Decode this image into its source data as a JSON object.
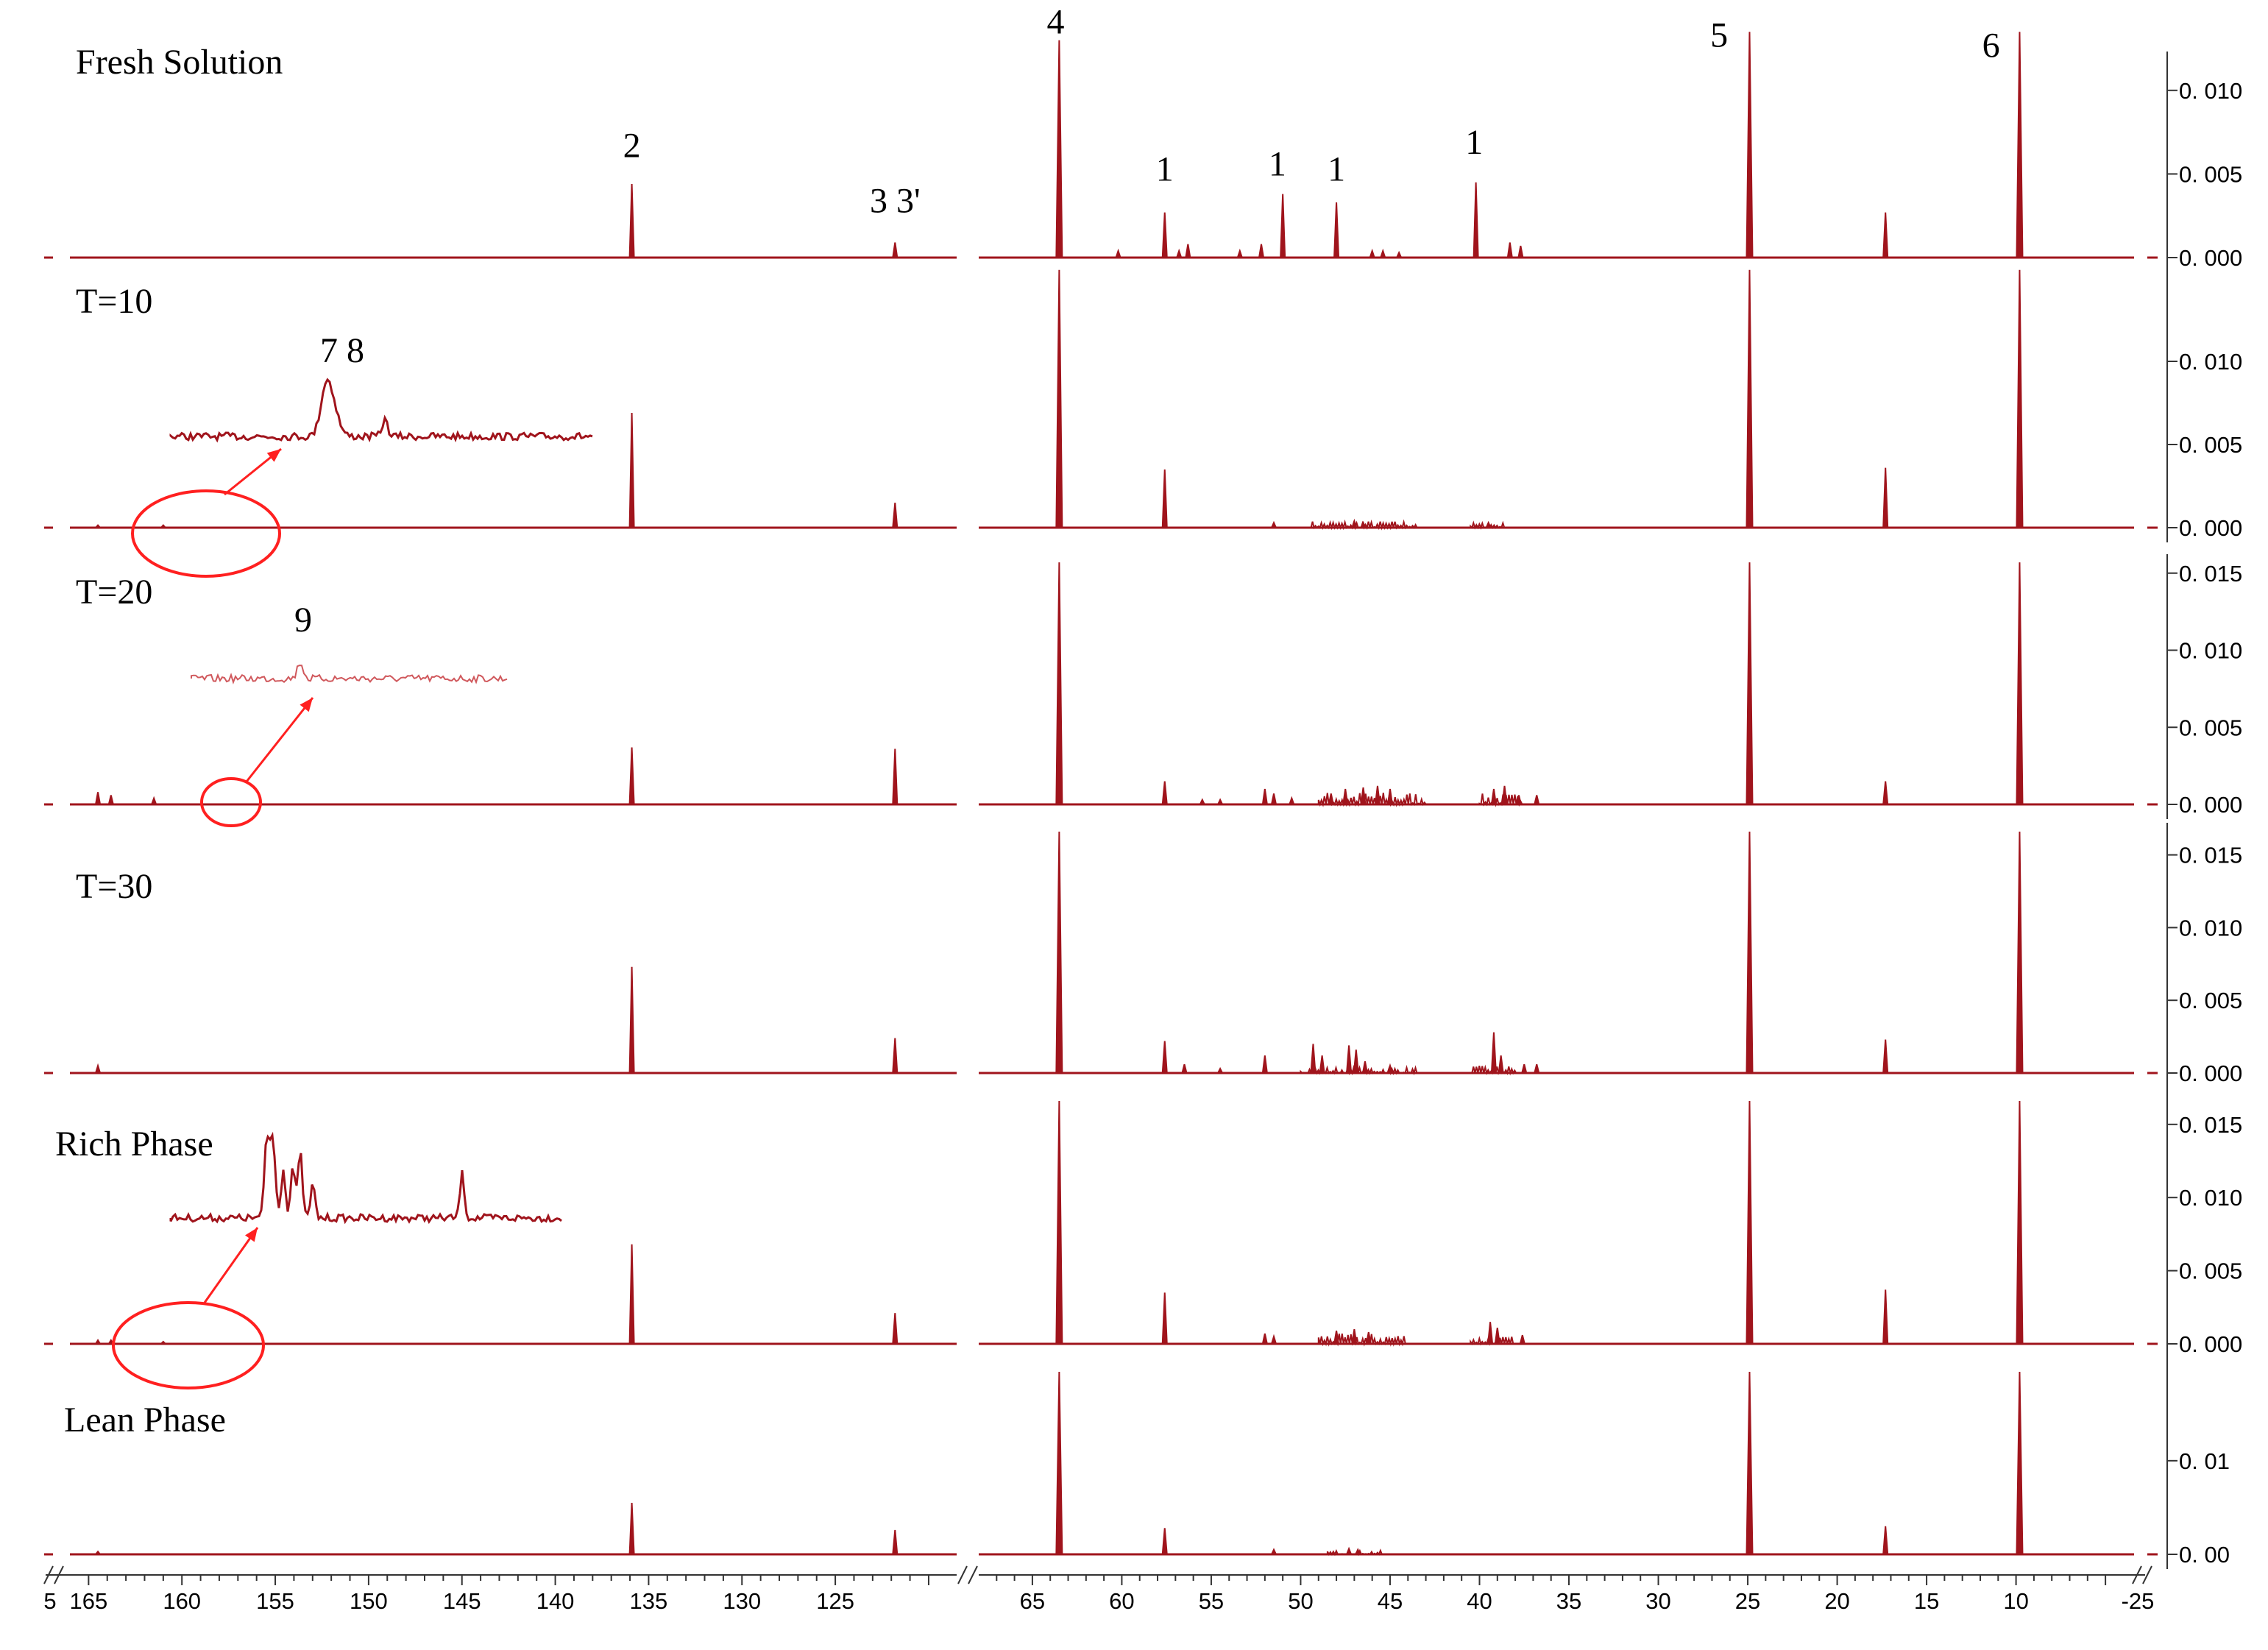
{
  "chart_data": {
    "type": "line",
    "x_axis": {
      "ticks_left": [
        "5",
        "165",
        "160",
        "155",
        "150",
        "145",
        "140",
        "135",
        "130",
        "125"
      ],
      "ticks_right": [
        "65",
        "60",
        "55",
        "50",
        "45",
        "40",
        "35",
        "30",
        "25",
        "20",
        "15",
        "10",
        "-25"
      ]
    },
    "panels": [
      {
        "label": "Fresh Solution",
        "y_ticks": [
          "0. 010",
          "0. 005",
          "0. 000"
        ],
        "y_tick_values": [
          0.01,
          0.005,
          0.0
        ],
        "ylim": [
          -0.0002,
          0.0125
        ],
        "peaks": [
          [
            135.9,
            0.0044
          ],
          [
            121.8,
            0.0009
          ],
          [
            63.5,
            0.013
          ],
          [
            60.2,
            0.0004
          ],
          [
            57.6,
            0.0027
          ],
          [
            56.8,
            0.0004
          ],
          [
            56.3,
            0.0008
          ],
          [
            53.4,
            0.0004
          ],
          [
            52.2,
            0.0008
          ],
          [
            51.0,
            0.0038
          ],
          [
            48.0,
            0.0033
          ],
          [
            46.0,
            0.0004
          ],
          [
            45.4,
            0.0004
          ],
          [
            44.5,
            0.0003
          ],
          [
            40.2,
            0.0045
          ],
          [
            38.3,
            0.0009
          ],
          [
            37.7,
            0.0007
          ],
          [
            24.9,
            0.0135
          ],
          [
            17.3,
            0.0027
          ],
          [
            9.8,
            0.0135
          ]
        ],
        "peak_labels": [
          {
            "text": "2",
            "x": 135.9,
            "y": 0.006
          },
          {
            "text": "3 3'",
            "x": 121.8,
            "y": 0.0027
          },
          {
            "text": "4",
            "x": 63.7,
            "y": 0.0134
          },
          {
            "text": "1",
            "x": 57.6,
            "y": 0.0046
          },
          {
            "text": "1",
            "x": 51.3,
            "y": 0.0049
          },
          {
            "text": "1",
            "x": 48.0,
            "y": 0.0046
          },
          {
            "text": "1",
            "x": 40.3,
            "y": 0.0062
          },
          {
            "text": "5",
            "x": 26.6,
            "y": 0.0126
          },
          {
            "text": "6",
            "x": 11.4,
            "y": 0.012
          }
        ]
      },
      {
        "label": "T=10",
        "y_ticks": [
          "0. 010",
          "0. 005",
          "0. 000"
        ],
        "y_tick_values": [
          0.01,
          0.005,
          0.0
        ],
        "ylim": [
          -0.0002,
          0.015
        ],
        "peaks": [
          [
            164.5,
            0.00015
          ],
          [
            161.0,
            0.00015
          ],
          [
            135.9,
            0.0069
          ],
          [
            121.8,
            0.0015
          ],
          [
            63.5,
            0.0155
          ],
          [
            57.6,
            0.0035
          ],
          [
            51.5,
            0.0003
          ],
          [
            47.0,
            0.0004
          ],
          [
            46.5,
            0.0003
          ],
          [
            39.5,
            0.0003
          ],
          [
            24.9,
            0.0155
          ],
          [
            17.3,
            0.0036
          ],
          [
            9.8,
            0.0155
          ]
        ],
        "noise_ranges": [
          [
            49.5,
            43.5,
            0.0004
          ],
          [
            40.5,
            38.5,
            0.0003
          ]
        ],
        "inset_label": "7 8"
      },
      {
        "label": "T=20",
        "y_ticks": [
          "0. 015",
          "0. 010",
          "0. 005",
          "0. 000"
        ],
        "y_tick_values": [
          0.015,
          0.01,
          0.005,
          0.0
        ],
        "ylim": [
          -0.0002,
          0.0158
        ],
        "peaks": [
          [
            164.5,
            0.0008
          ],
          [
            163.8,
            0.0006
          ],
          [
            161.5,
            0.0004
          ],
          [
            135.9,
            0.0037
          ],
          [
            121.8,
            0.0036
          ],
          [
            63.5,
            0.0157
          ],
          [
            57.6,
            0.0015
          ],
          [
            55.5,
            0.0003
          ],
          [
            54.5,
            0.0003
          ],
          [
            52.0,
            0.001
          ],
          [
            51.5,
            0.0007
          ],
          [
            50.5,
            0.0004
          ],
          [
            48.3,
            0.0007
          ],
          [
            47.5,
            0.001
          ],
          [
            46.5,
            0.0011
          ],
          [
            45.7,
            0.0012
          ],
          [
            45.0,
            0.001
          ],
          [
            39.2,
            0.001
          ],
          [
            38.6,
            0.0012
          ],
          [
            37.8,
            0.0006
          ],
          [
            36.8,
            0.0006
          ],
          [
            24.9,
            0.0157
          ],
          [
            17.3,
            0.0015
          ],
          [
            9.8,
            0.0157
          ]
        ],
        "noise_ranges": [
          [
            49.0,
            43.0,
            0.0008
          ],
          [
            40.0,
            37.5,
            0.0007
          ]
        ],
        "inset_label": "9"
      },
      {
        "label": "T=30",
        "y_ticks": [
          "0. 015",
          "0. 010",
          "0. 005",
          "0. 000"
        ],
        "y_tick_values": [
          0.015,
          0.01,
          0.005,
          0.0
        ],
        "ylim": [
          -0.0002,
          0.0166
        ],
        "peaks": [
          [
            164.5,
            0.0005
          ],
          [
            135.9,
            0.0073
          ],
          [
            121.8,
            0.0024
          ],
          [
            63.5,
            0.0166
          ],
          [
            57.6,
            0.0022
          ],
          [
            56.5,
            0.0006
          ],
          [
            54.5,
            0.0003
          ],
          [
            52.0,
            0.0012
          ],
          [
            49.3,
            0.002
          ],
          [
            48.8,
            0.0012
          ],
          [
            47.3,
            0.0019
          ],
          [
            46.9,
            0.0016
          ],
          [
            46.4,
            0.0008
          ],
          [
            45.0,
            0.0005
          ],
          [
            39.2,
            0.0028
          ],
          [
            38.8,
            0.0012
          ],
          [
            37.5,
            0.0006
          ],
          [
            36.8,
            0.0006
          ],
          [
            24.9,
            0.0166
          ],
          [
            17.3,
            0.0023
          ],
          [
            9.8,
            0.0166
          ]
        ],
        "noise_ranges": [
          [
            50.0,
            43.5,
            0.0004
          ],
          [
            40.5,
            38.0,
            0.0005
          ]
        ]
      },
      {
        "label": "Rich Phase",
        "y_ticks": [
          "0. 015",
          "0. 010",
          "0. 005",
          "0. 000"
        ],
        "y_tick_values": [
          0.015,
          0.01,
          0.005,
          0.0
        ],
        "ylim": [
          -0.0002,
          0.0166
        ],
        "peaks": [
          [
            164.5,
            0.00025
          ],
          [
            163.8,
            0.00025
          ],
          [
            161.0,
            0.00015
          ],
          [
            135.9,
            0.0068
          ],
          [
            121.8,
            0.0021
          ],
          [
            63.5,
            0.0166
          ],
          [
            57.6,
            0.0035
          ],
          [
            52.0,
            0.0007
          ],
          [
            51.5,
            0.0005
          ],
          [
            48.0,
            0.0009
          ],
          [
            47.0,
            0.001
          ],
          [
            46.2,
            0.0008
          ],
          [
            39.4,
            0.0015
          ],
          [
            39.0,
            0.0011
          ],
          [
            37.6,
            0.0006
          ],
          [
            24.9,
            0.0166
          ],
          [
            17.3,
            0.0037
          ],
          [
            9.8,
            0.0166
          ]
        ],
        "noise_ranges": [
          [
            49.0,
            44.0,
            0.0007
          ],
          [
            40.5,
            38.0,
            0.0005
          ]
        ]
      },
      {
        "label": "Lean Phase",
        "y_ticks": [
          "0. 01",
          "0. 00"
        ],
        "y_tick_values": [
          0.01,
          0.0
        ],
        "ylim": [
          -0.0002,
          0.0195
        ],
        "peaks": [
          [
            164.5,
            0.0003
          ],
          [
            135.9,
            0.0055
          ],
          [
            121.8,
            0.0026
          ],
          [
            63.5,
            0.0195
          ],
          [
            57.6,
            0.0028
          ],
          [
            51.5,
            0.0005
          ],
          [
            47.3,
            0.0006
          ],
          [
            46.8,
            0.0005
          ],
          [
            24.9,
            0.0195
          ],
          [
            17.3,
            0.003
          ],
          [
            9.8,
            0.0195
          ]
        ],
        "noise_ranges": [
          [
            48.5,
            45.5,
            0.0004
          ]
        ]
      }
    ]
  },
  "colors": {
    "line": "#a0141c",
    "inset": "#d0585c",
    "annotation": "#ff2020",
    "axis": "#333333"
  }
}
